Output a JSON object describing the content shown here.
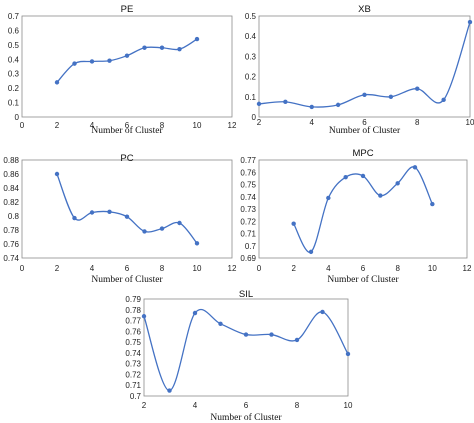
{
  "series_color": "#4472c4",
  "chart_data": [
    {
      "type": "line",
      "title": "PE",
      "xlabel": "Number of Cluster",
      "ylabel": "",
      "xlim": [
        0,
        12
      ],
      "ylim": [
        0,
        0.7
      ],
      "xticks": [
        "0",
        "2",
        "4",
        "6",
        "8",
        "10",
        "12"
      ],
      "yticks": [
        "0",
        "0.1",
        "0.2",
        "0.3",
        "0.4",
        "0.5",
        "0.6",
        "0.7"
      ],
      "smooth": true,
      "grid": false,
      "x": [
        2,
        3,
        4,
        5,
        6,
        7,
        8,
        9,
        10
      ],
      "y": [
        0.24,
        0.37,
        0.385,
        0.39,
        0.425,
        0.48,
        0.48,
        0.47,
        0.54
      ]
    },
    {
      "type": "line",
      "title": "XB",
      "xlabel": "Number of Cluster",
      "ylabel": "",
      "xlim": [
        2,
        10
      ],
      "ylim": [
        0,
        0.5
      ],
      "xticks": [
        "2",
        "4",
        "6",
        "8",
        "10"
      ],
      "yticks": [
        "0",
        "0.1",
        "0.2",
        "0.3",
        "0.4",
        "0.5"
      ],
      "smooth": true,
      "grid": false,
      "x": [
        2,
        3,
        4,
        5,
        6,
        7,
        8,
        9,
        10
      ],
      "y": [
        0.065,
        0.075,
        0.05,
        0.06,
        0.11,
        0.1,
        0.14,
        0.085,
        0.47
      ]
    },
    {
      "type": "line",
      "title": "PC",
      "xlabel": "Number of Cluster",
      "ylabel": "",
      "xlim": [
        0,
        12
      ],
      "ylim": [
        0.74,
        0.88
      ],
      "xticks": [
        "0",
        "2",
        "4",
        "6",
        "8",
        "10",
        "12"
      ],
      "yticks": [
        "0.74",
        "0.76",
        "0.78",
        "0.8",
        "0.82",
        "0.84",
        "0.86",
        "0.88"
      ],
      "smooth": true,
      "grid": false,
      "x": [
        2,
        3,
        4,
        5,
        6,
        7,
        8,
        9,
        10
      ],
      "y": [
        0.86,
        0.797,
        0.805,
        0.806,
        0.799,
        0.778,
        0.782,
        0.79,
        0.761
      ]
    },
    {
      "type": "line",
      "title": "MPC",
      "xlabel": "Number of Cluster",
      "ylabel": "",
      "xlim": [
        0,
        12
      ],
      "ylim": [
        0.69,
        0.77
      ],
      "xticks": [
        "0",
        "2",
        "4",
        "6",
        "8",
        "10",
        "12"
      ],
      "yticks": [
        "0.69",
        "0.7",
        "0.71",
        "0.72",
        "0.73",
        "0.74",
        "0.75",
        "0.76",
        "0.77"
      ],
      "smooth": true,
      "grid": false,
      "x": [
        2,
        3,
        4,
        5,
        6,
        7,
        8,
        9,
        10
      ],
      "y": [
        0.718,
        0.695,
        0.739,
        0.756,
        0.757,
        0.741,
        0.751,
        0.764,
        0.734
      ]
    },
    {
      "type": "line",
      "title": "SIL",
      "xlabel": "Number of Cluster",
      "ylabel": "",
      "xlim": [
        2,
        10
      ],
      "ylim": [
        0.7,
        0.79
      ],
      "xticks": [
        "2",
        "4",
        "6",
        "8",
        "10"
      ],
      "yticks": [
        "0.7",
        "0.71",
        "0.72",
        "0.73",
        "0.74",
        "0.75",
        "0.76",
        "0.77",
        "0.78",
        "0.79"
      ],
      "smooth": true,
      "grid": false,
      "x": [
        2,
        3,
        4,
        5,
        6,
        7,
        8,
        9,
        10
      ],
      "y": [
        0.774,
        0.705,
        0.777,
        0.767,
        0.757,
        0.757,
        0.752,
        0.778,
        0.739
      ]
    }
  ]
}
